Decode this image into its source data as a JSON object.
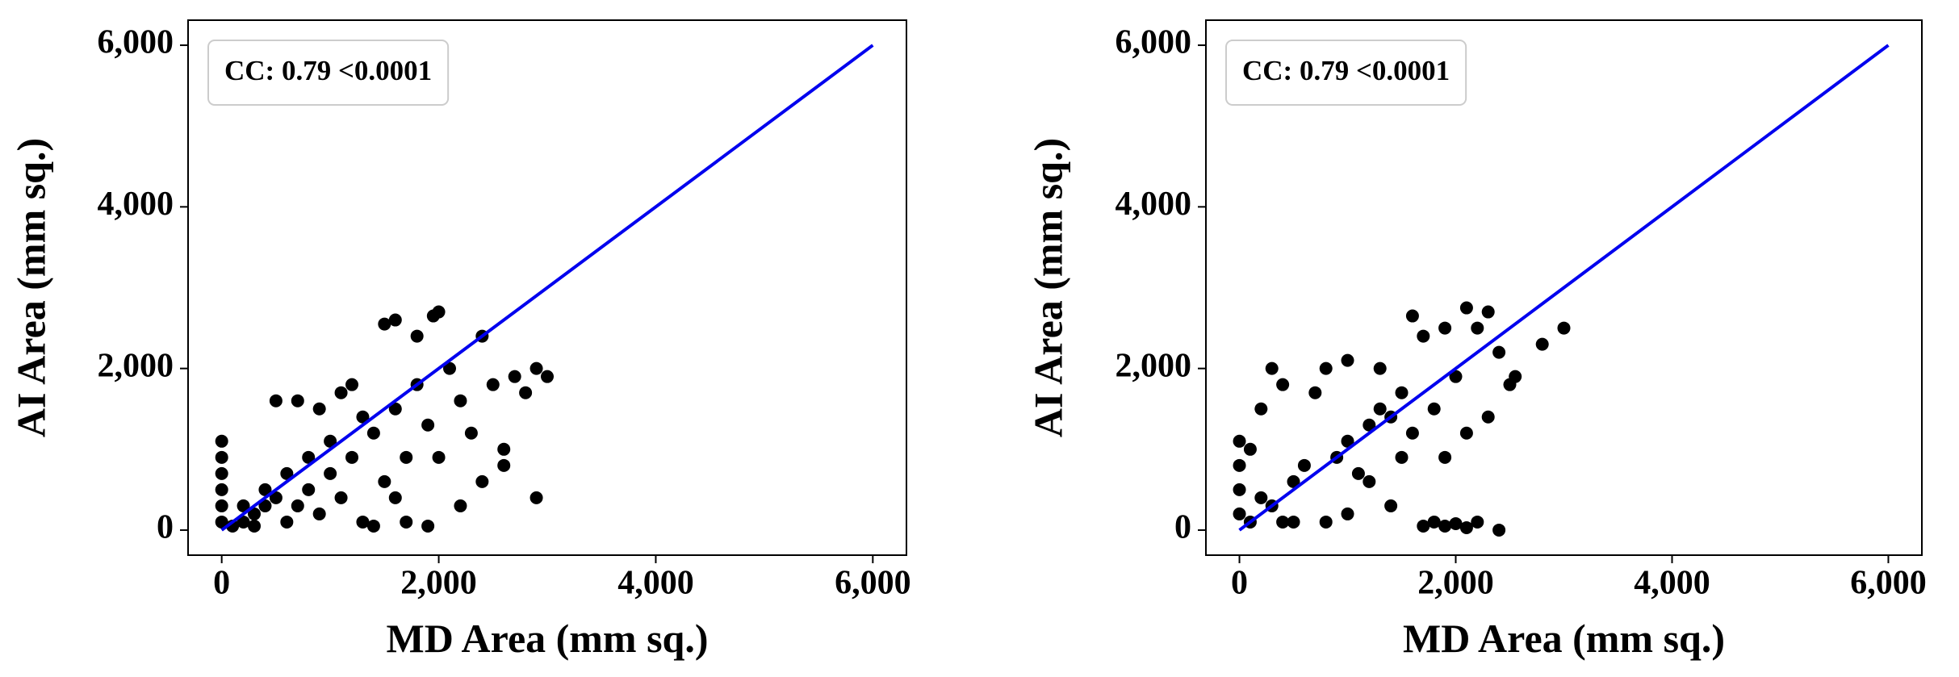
{
  "chart_data": [
    {
      "type": "scatter",
      "x_label": "MD Area (mm sq.)",
      "y_label": "AI Area (mm sq.)",
      "annotation": "CC: 0.79 <0.0001",
      "xlim": [
        -310,
        6310
      ],
      "ylim": [
        -310,
        6310
      ],
      "xticks": [
        0,
        {
          "value": 2000,
          "label": "2,000"
        },
        {
          "value": 4000,
          "label": "4,000"
        },
        {
          "value": 6000,
          "label": "6,000"
        }
      ],
      "yticks": [
        0,
        {
          "value": 2000,
          "label": "2,000"
        },
        {
          "value": 4000,
          "label": "4,000"
        },
        {
          "value": 6000,
          "label": "6,000"
        }
      ],
      "reference_line": {
        "x": [
          0,
          6000
        ],
        "y": [
          0,
          6000
        ],
        "color": "#0000ee"
      },
      "color": "#000000",
      "x": [
        0,
        0,
        0,
        0,
        0,
        0,
        100,
        200,
        300,
        400,
        500,
        300,
        600,
        700,
        800,
        900,
        1000,
        1100,
        1200,
        1300,
        1400,
        1500,
        1600,
        1700,
        1800,
        1900,
        2000,
        1950,
        1600,
        1500,
        1800,
        2100,
        2200,
        2300,
        2400,
        2500,
        2600,
        2700,
        2800,
        2900,
        3000,
        2900,
        2600,
        2400,
        2200,
        1700,
        1900,
        1400,
        500,
        700,
        900,
        1100,
        1200,
        400,
        200,
        600,
        800,
        1000,
        1300,
        1600,
        2000
      ],
      "y": [
        1100,
        900,
        700,
        500,
        300,
        100,
        50,
        100,
        200,
        300,
        400,
        50,
        100,
        300,
        500,
        200,
        700,
        400,
        900,
        100,
        1200,
        600,
        1500,
        900,
        1800,
        1300,
        2700,
        2650,
        2600,
        2550,
        2400,
        2000,
        1600,
        1200,
        2400,
        1800,
        1000,
        1900,
        1700,
        2000,
        1900,
        400,
        800,
        600,
        300,
        100,
        50,
        50,
        1600,
        1600,
        1500,
        1700,
        1800,
        500,
        300,
        700,
        900,
        1100,
        1400,
        400,
        900
      ]
    },
    {
      "type": "scatter",
      "x_label": "MD Area (mm sq.)",
      "y_label": "AI Area (mm sq.)",
      "annotation": "CC: 0.79 <0.0001",
      "xlim": [
        -310,
        6310
      ],
      "ylim": [
        -310,
        6310
      ],
      "xticks": [
        0,
        {
          "value": 2000,
          "label": "2,000"
        },
        {
          "value": 4000,
          "label": "4,000"
        },
        {
          "value": 6000,
          "label": "6,000"
        }
      ],
      "yticks": [
        0,
        {
          "value": 2000,
          "label": "2,000"
        },
        {
          "value": 4000,
          "label": "4,000"
        },
        {
          "value": 6000,
          "label": "6,000"
        }
      ],
      "reference_line": {
        "x": [
          0,
          6000
        ],
        "y": [
          0,
          6000
        ],
        "color": "#0000ee"
      },
      "color": "#000000",
      "x": [
        0,
        0,
        0,
        0,
        100,
        100,
        200,
        300,
        200,
        300,
        400,
        500,
        600,
        700,
        800,
        900,
        1000,
        1000,
        1100,
        1200,
        1300,
        1300,
        1400,
        1500,
        1600,
        1700,
        1800,
        1900,
        2000,
        2100,
        2200,
        2300,
        2400,
        2500,
        2550,
        2300,
        2100,
        1900,
        1800,
        1900,
        2000,
        2100,
        2200,
        2400,
        1700,
        3000,
        2800,
        1400,
        1000,
        800,
        500,
        400,
        1200,
        1500,
        1600
      ],
      "y": [
        1100,
        800,
        500,
        200,
        100,
        1000,
        400,
        300,
        1500,
        2000,
        1800,
        600,
        800,
        1700,
        2000,
        900,
        1100,
        2100,
        700,
        1300,
        1500,
        2000,
        1400,
        1700,
        2650,
        2400,
        1500,
        2500,
        1900,
        2750,
        2500,
        2700,
        2200,
        1800,
        1900,
        1400,
        1200,
        900,
        100,
        50,
        80,
        30,
        100,
        0,
        50,
        2500,
        2300,
        300,
        200,
        100,
        100,
        100,
        600,
        900,
        1200
      ]
    }
  ]
}
